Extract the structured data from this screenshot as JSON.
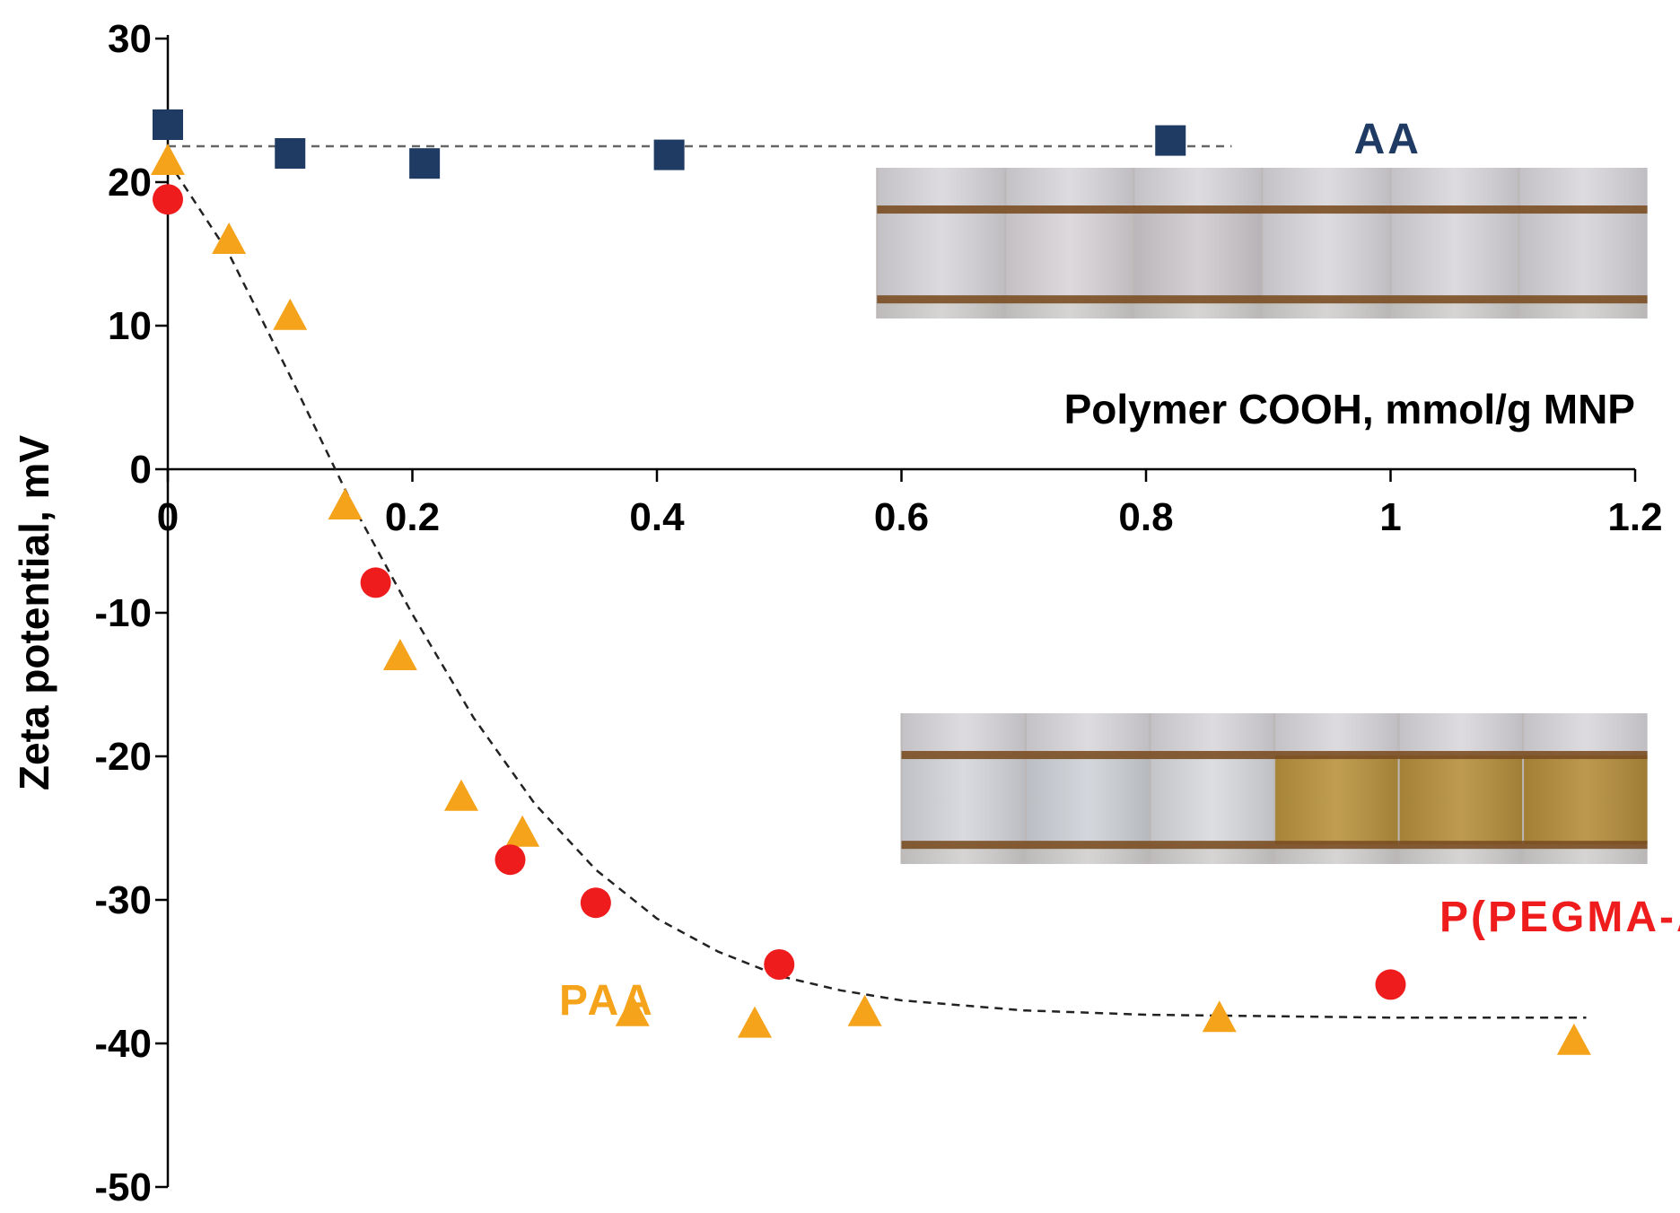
{
  "chart_data": {
    "type": "scatter",
    "title": "",
    "xlabel": "Polymer COOH, mmol/g MNP",
    "ylabel": "Zeta potential, mV",
    "xlim": [
      0,
      1.2
    ],
    "ylim": [
      -50,
      30
    ],
    "x_ticks": [
      "0",
      "0.2",
      "0.4",
      "0.6",
      "0.8",
      "1",
      "1.2"
    ],
    "y_ticks": [
      "30",
      "20",
      "10",
      "0",
      "-10",
      "-20",
      "-30",
      "-40",
      "-50"
    ],
    "grid": false,
    "series": [
      {
        "name": "AA",
        "marker": "square",
        "color": "#1f3b63",
        "points": [
          [
            0.0,
            24.0
          ],
          [
            0.1,
            22.0
          ],
          [
            0.21,
            21.3
          ],
          [
            0.41,
            21.9
          ],
          [
            0.82,
            22.9
          ]
        ]
      },
      {
        "name": "PAA",
        "marker": "triangle",
        "color": "#f5a31a",
        "points": [
          [
            0.0,
            21.5
          ],
          [
            0.05,
            16.0
          ],
          [
            0.1,
            10.7
          ],
          [
            0.145,
            -2.5
          ],
          [
            0.19,
            -13.0
          ],
          [
            0.24,
            -22.8
          ],
          [
            0.29,
            -25.3
          ],
          [
            0.38,
            -37.8
          ],
          [
            0.48,
            -38.6
          ],
          [
            0.57,
            -37.8
          ],
          [
            0.86,
            -38.2
          ],
          [
            1.15,
            -39.8
          ]
        ]
      },
      {
        "name": "P(PEGMA-AA)",
        "marker": "circle",
        "color": "#ee1c1c",
        "points": [
          [
            0.0,
            18.8
          ],
          [
            0.17,
            -7.9
          ],
          [
            0.28,
            -27.2
          ],
          [
            0.35,
            -30.2
          ],
          [
            0.5,
            -34.5
          ],
          [
            1.0,
            -35.9
          ]
        ]
      }
    ],
    "trend_lines": [
      {
        "series": "AA",
        "style": "dashed",
        "points": [
          [
            0.0,
            22.5
          ],
          [
            0.87,
            22.5
          ]
        ]
      },
      {
        "series": "PAA / P(PEGMA-AA)",
        "style": "dashed",
        "points": [
          [
            0.0,
            21.5
          ],
          [
            0.05,
            15.0
          ],
          [
            0.1,
            6.5
          ],
          [
            0.15,
            -2.3
          ],
          [
            0.2,
            -10.1
          ],
          [
            0.25,
            -17.3
          ],
          [
            0.3,
            -23.3
          ],
          [
            0.35,
            -27.9
          ],
          [
            0.4,
            -31.3
          ],
          [
            0.45,
            -33.6
          ],
          [
            0.5,
            -35.3
          ],
          [
            0.55,
            -36.3
          ],
          [
            0.6,
            -37.0
          ],
          [
            0.7,
            -37.7
          ],
          [
            0.8,
            -38.0
          ],
          [
            0.9,
            -38.1
          ],
          [
            1.0,
            -38.2
          ],
          [
            1.1,
            -38.2
          ],
          [
            1.16,
            -38.2
          ]
        ]
      }
    ],
    "series_labels": {
      "aa": {
        "text": "AA",
        "color": "#1f3b63",
        "x": 0.97,
        "y": 23.0
      },
      "paa": {
        "text": "PAA",
        "color": "#f5a31a",
        "x": 0.32,
        "y": -37.0
      },
      "pegma": {
        "text": "P(PEGMA-AA)",
        "color": "#ee1c1c",
        "x": 1.04,
        "y": -31.2
      }
    },
    "inset_photos": [
      {
        "name": "AA vials",
        "vial_count": 6,
        "x_range": [
          0.58,
          1.21
        ],
        "y_range": [
          21.0,
          10.5
        ],
        "vial_colors": [
          "#d8d6da",
          "#d9d5d8",
          "#cfcbcf",
          "#d9d7db",
          "#d8d6da",
          "#d6d4d8"
        ]
      },
      {
        "name": "P(PEGMA-AA) vials",
        "vial_count": 6,
        "x_range": [
          0.6,
          1.21
        ],
        "y_range": [
          -17.0,
          -27.5
        ],
        "vial_colors": [
          "#d4d6dc",
          "#cfd2d8",
          "#d8dade",
          "#b8923e",
          "#b58f3c",
          "#b48d3b"
        ]
      }
    ]
  }
}
